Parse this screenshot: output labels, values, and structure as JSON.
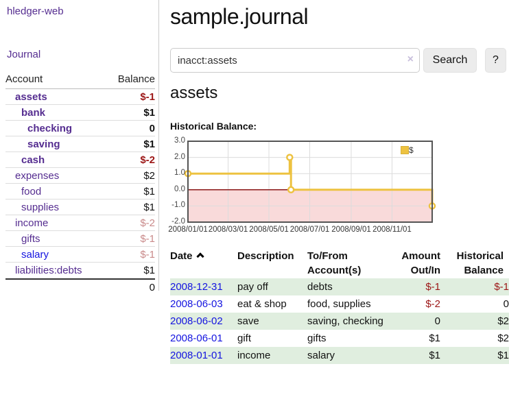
{
  "app": {
    "brand": "hledger-web",
    "nav_journal": "Journal"
  },
  "sidebar": {
    "header": {
      "account": "Account",
      "balance": "Balance"
    },
    "accounts": [
      {
        "name": "assets",
        "indent": 0,
        "balance": "$-1",
        "bold": true,
        "neg": "strong",
        "blue": false
      },
      {
        "name": "bank",
        "indent": 1,
        "balance": "$1",
        "bold": true,
        "neg": "none",
        "blue": false
      },
      {
        "name": "checking",
        "indent": 2,
        "balance": "0",
        "bold": true,
        "neg": "none",
        "blue": false
      },
      {
        "name": "saving",
        "indent": 2,
        "balance": "$1",
        "bold": true,
        "neg": "none",
        "blue": false
      },
      {
        "name": "cash",
        "indent": 1,
        "balance": "$-2",
        "bold": true,
        "neg": "strong",
        "blue": false
      },
      {
        "name": "expenses",
        "indent": 0,
        "balance": "$2",
        "bold": false,
        "neg": "none",
        "blue": false
      },
      {
        "name": "food",
        "indent": 1,
        "balance": "$1",
        "bold": false,
        "neg": "none",
        "blue": false
      },
      {
        "name": "supplies",
        "indent": 1,
        "balance": "$1",
        "bold": false,
        "neg": "none",
        "blue": false
      },
      {
        "name": "income",
        "indent": 0,
        "balance": "$-2",
        "bold": false,
        "neg": "muted",
        "blue": false
      },
      {
        "name": "gifts",
        "indent": 1,
        "balance": "$-1",
        "bold": false,
        "neg": "muted",
        "blue": false
      },
      {
        "name": "salary",
        "indent": 1,
        "balance": "$-1",
        "bold": false,
        "neg": "muted",
        "blue": true
      },
      {
        "name": "liabilities:debts",
        "indent": 0,
        "balance": "$1",
        "bold": false,
        "neg": "none",
        "blue": false
      }
    ],
    "total": "0"
  },
  "header": {
    "title": "sample.journal"
  },
  "search": {
    "value": "inacct:assets",
    "clear_icon": "×",
    "button_label": "Search",
    "help_label": "?"
  },
  "account_page": {
    "title": "assets",
    "chart_label": "Historical Balance:"
  },
  "chart_data": {
    "type": "line",
    "step": true,
    "title": "Historical Balance",
    "series": [
      {
        "name": "$",
        "color": "#edc240",
        "points": [
          [
            "2008-01-01",
            1
          ],
          [
            "2008-06-01",
            2
          ],
          [
            "2008-06-03",
            0
          ],
          [
            "2008-12-31",
            -1
          ]
        ]
      }
    ],
    "x_start": "2008-01-01",
    "x_end": "2008-12-31",
    "ylim": [
      -2.0,
      3.0
    ],
    "yticks": [
      3.0,
      2.0,
      1.0,
      0.0,
      -1.0,
      -2.0
    ],
    "xticks": [
      "2008/01/01",
      "2008/03/01",
      "2008/05/01",
      "2008/07/01",
      "2008/09/01",
      "2008/11/01"
    ],
    "legend": "$",
    "legend_position": "top-right",
    "grid": true,
    "colors": {
      "negative_region": "#f9dada",
      "zero_line": "#8b1717",
      "gridline": "#dcdcdc",
      "border": "#545454",
      "marker_fill": "#ffffff"
    }
  },
  "register": {
    "headers": {
      "date": "Date",
      "description": "Description",
      "accounts_l1": "To/From",
      "accounts_l2": "Account(s)",
      "amount_l1": "Amount",
      "amount_l2": "Out/In",
      "balance_l1": "Historical",
      "balance_l2": "Balance"
    },
    "rows": [
      {
        "date": "2008-12-31",
        "description": "pay off",
        "accounts": "debts",
        "amount": "$-1",
        "amount_neg": true,
        "balance": "$-1",
        "balance_neg": true
      },
      {
        "date": "2008-06-03",
        "description": "eat & shop",
        "accounts": "food, supplies",
        "amount": "$-2",
        "amount_neg": true,
        "balance": "0",
        "balance_neg": false
      },
      {
        "date": "2008-06-02",
        "description": "save",
        "accounts": "saving, checking",
        "amount": "0",
        "amount_neg": false,
        "balance": "$2",
        "balance_neg": false
      },
      {
        "date": "2008-06-01",
        "description": "gift",
        "accounts": "gifts",
        "amount": "$1",
        "amount_neg": false,
        "balance": "$2",
        "balance_neg": false
      },
      {
        "date": "2008-01-01",
        "description": "income",
        "accounts": "salary",
        "amount": "$1",
        "amount_neg": false,
        "balance": "$1",
        "balance_neg": false
      }
    ]
  }
}
